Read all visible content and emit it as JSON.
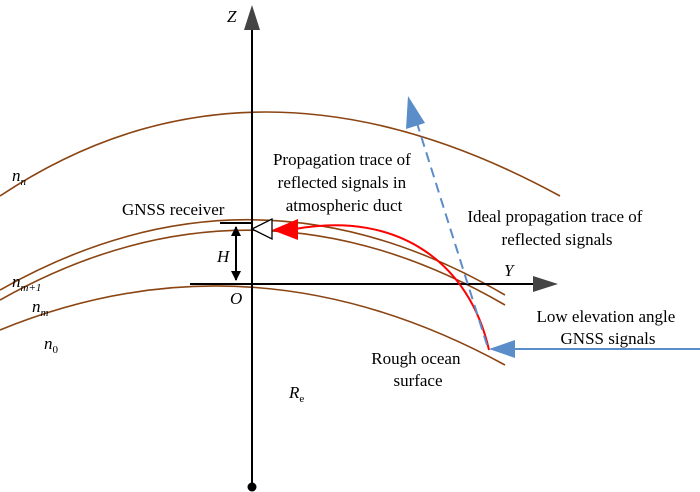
{
  "axes": {
    "z_label": "Z",
    "y_label": "Y",
    "origin_label": "O"
  },
  "layers": {
    "n_n": {
      "base": "n",
      "sub": "n"
    },
    "n_m1": {
      "base": "n",
      "sub": "m+1"
    },
    "n_m": {
      "base": "n",
      "sub": "m"
    },
    "n_0": {
      "base": "n",
      "sub": "0"
    }
  },
  "labels": {
    "receiver": "GNSS receiver",
    "height": "H",
    "duct_trace": [
      "Propagation trace of",
      "reflected signals in",
      "atmospheric duct"
    ],
    "ideal_trace": [
      "Ideal propagation trace of",
      "reflected signals"
    ],
    "low_elev": [
      "Low elevation angle",
      "GNSS signals"
    ],
    "ocean": [
      "Rough ocean",
      "surface"
    ],
    "radius": {
      "base": "R",
      "sub": "e"
    }
  },
  "colors": {
    "layer_curve": "#8B4513",
    "duct_trace": "#FF0000",
    "signal": "#5B8DC9",
    "axis": "#000000"
  }
}
